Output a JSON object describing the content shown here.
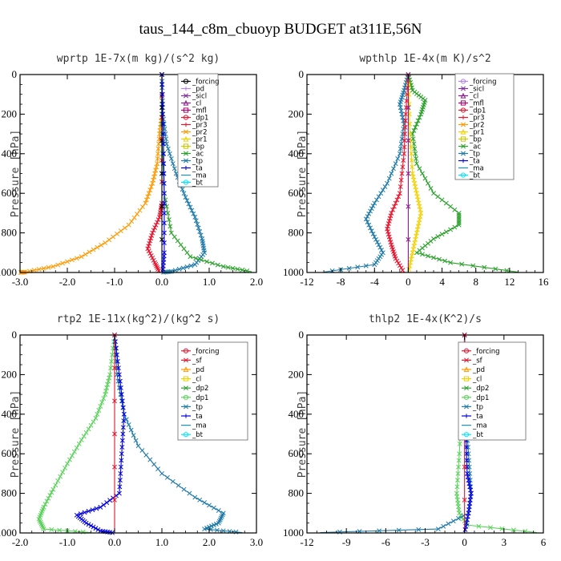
{
  "figure": {
    "title": "taus_144_c8m_cbuoyp  BUDGET at311E,56N"
  },
  "chart_data": [
    {
      "type": "line",
      "title": "wprtp  1E-7x(m kg)/(s^2 kg)",
      "ylabel": "Pressure [hPa]",
      "xlabel": "",
      "xlim": [
        -3.0,
        2.0
      ],
      "ylim": [
        1000,
        0
      ],
      "y_reversed": true,
      "xticks": [
        -3.0,
        -2.0,
        -1.0,
        0.0,
        1.0,
        2.0
      ],
      "xtick_labels": [
        "-3.0",
        "-2.0",
        "-1.0",
        "0.0",
        "1.0",
        "2.0"
      ],
      "yticks": [
        0,
        200,
        400,
        600,
        800,
        1000
      ],
      "ytick_labels": [
        "0",
        "200",
        "400",
        "600",
        "800",
        "1000"
      ],
      "legend_position": "top-right",
      "legend": [
        {
          "name": "_forcing",
          "color": "#000000",
          "marker": "o"
        },
        {
          "name": "_pd",
          "color": "#b284ec",
          "marker": "+"
        },
        {
          "name": "_sicl",
          "color": "#7d2e9e",
          "marker": "x"
        },
        {
          "name": "_cl",
          "color": "#8b1a8b",
          "marker": "^"
        },
        {
          "name": "_mfl",
          "color": "#b0006b",
          "marker": "s"
        },
        {
          "name": "_dp1",
          "color": "#e8152f",
          "marker": "o"
        },
        {
          "name": "_pr3",
          "color": "#e8152f",
          "marker": "+"
        },
        {
          "name": "_pr2",
          "color": "#ff9900",
          "marker": "x"
        },
        {
          "name": "_pr1",
          "color": "#f2d100",
          "marker": "^"
        },
        {
          "name": "_bp",
          "color": "#c8c800",
          "marker": "s"
        },
        {
          "name": "_ac",
          "color": "#2aa02a",
          "marker": "x"
        },
        {
          "name": "_tp",
          "color": "#1f7aa8",
          "marker": "x"
        },
        {
          "name": "_ta",
          "color": "#0000dd",
          "marker": "+"
        },
        {
          "name": "_ma",
          "color": "#1d8fc4",
          "marker": "-"
        },
        {
          "name": "_bt",
          "color": "#00e5ff",
          "marker": "o"
        }
      ],
      "series": [
        {
          "color": "#ff9900",
          "points": [
            [
              0.0,
              0
            ],
            [
              0.0,
              200
            ],
            [
              -0.05,
              300
            ],
            [
              -0.1,
              450
            ],
            [
              -0.2,
              550
            ],
            [
              -0.35,
              650
            ],
            [
              -0.7,
              760
            ],
            [
              -1.2,
              850
            ],
            [
              -1.7,
              920
            ],
            [
              -2.3,
              970
            ],
            [
              -2.9,
              998
            ],
            [
              -3.0,
              1000
            ]
          ]
        },
        {
          "color": "#1f7aa8",
          "points": [
            [
              0.0,
              0
            ],
            [
              0.02,
              200
            ],
            [
              0.1,
              350
            ],
            [
              0.3,
              500
            ],
            [
              0.5,
              620
            ],
            [
              0.7,
              720
            ],
            [
              0.85,
              830
            ],
            [
              0.9,
              900
            ],
            [
              0.7,
              960
            ],
            [
              0.2,
              995
            ],
            [
              0.0,
              1000
            ]
          ]
        },
        {
          "color": "#2aa02a",
          "points": [
            [
              0.0,
              0
            ],
            [
              0.0,
              300
            ],
            [
              0.05,
              600
            ],
            [
              0.2,
              800
            ],
            [
              0.6,
              920
            ],
            [
              1.3,
              970
            ],
            [
              1.9,
              996
            ]
          ]
        },
        {
          "color": "#e8152f",
          "points": [
            [
              0.0,
              0
            ],
            [
              0.0,
              650
            ],
            [
              -0.05,
              720
            ],
            [
              -0.2,
              800
            ],
            [
              -0.3,
              880
            ],
            [
              -0.15,
              950
            ],
            [
              -0.05,
              1000
            ]
          ]
        },
        {
          "color": "#000000",
          "points": [
            [
              0.0,
              0
            ],
            [
              0.0,
              1000
            ]
          ]
        },
        {
          "color": "#0000dd",
          "points": [
            [
              0.0,
              0
            ],
            [
              0.03,
              300
            ],
            [
              0.05,
              600
            ],
            [
              0.05,
              900
            ],
            [
              0.02,
              1000
            ]
          ]
        }
      ]
    },
    {
      "type": "line",
      "title": "wpthlp  1E-4x(m K)/s^2",
      "ylabel": "Pressure [hPa]",
      "xlabel": "",
      "xlim": [
        -12,
        16
      ],
      "ylim": [
        1000,
        0
      ],
      "y_reversed": true,
      "xticks": [
        -12,
        -8,
        -4,
        0,
        4,
        8,
        12,
        16
      ],
      "xtick_labels": [
        "-12",
        "-8",
        "-4",
        "0",
        "4",
        "8",
        "12",
        "16"
      ],
      "yticks": [
        0,
        200,
        400,
        600,
        800,
        1000
      ],
      "ytick_labels": [
        "0",
        "200",
        "400",
        "600",
        "800",
        "1000"
      ],
      "legend_position": "top-right",
      "legend": [
        {
          "name": "_forcing",
          "color": "#b284ec",
          "marker": "o"
        },
        {
          "name": "_sicl",
          "color": "#7d2e9e",
          "marker": "x"
        },
        {
          "name": "_cl",
          "color": "#8b1a8b",
          "marker": "^"
        },
        {
          "name": "_mfl",
          "color": "#b0006b",
          "marker": "s"
        },
        {
          "name": "_dp1",
          "color": "#e8152f",
          "marker": "o"
        },
        {
          "name": "_pr3",
          "color": "#e8152f",
          "marker": "+"
        },
        {
          "name": "_pr2",
          "color": "#ff9900",
          "marker": "x"
        },
        {
          "name": "_pr1",
          "color": "#f2d100",
          "marker": "^"
        },
        {
          "name": "_bp",
          "color": "#c8c800",
          "marker": "s"
        },
        {
          "name": "_ac",
          "color": "#2aa02a",
          "marker": "x"
        },
        {
          "name": "_tp",
          "color": "#1f7aa8",
          "marker": "x"
        },
        {
          "name": "_ta",
          "color": "#0000dd",
          "marker": "+"
        },
        {
          "name": "_ma",
          "color": "#1d8fc4",
          "marker": "-"
        },
        {
          "name": "_bt",
          "color": "#00e5ff",
          "marker": "o"
        }
      ],
      "series": [
        {
          "color": "#2aa02a",
          "points": [
            [
              0,
              0
            ],
            [
              0.5,
              80
            ],
            [
              2,
              130
            ],
            [
              1.5,
              200
            ],
            [
              0.5,
              300
            ],
            [
              1,
              450
            ],
            [
              3,
              600
            ],
            [
              6,
              700
            ],
            [
              6,
              760
            ],
            [
              3,
              830
            ],
            [
              1,
              900
            ],
            [
              5,
              950
            ],
            [
              13,
              998
            ]
          ]
        },
        {
          "color": "#1f7aa8",
          "points": [
            [
              0,
              0
            ],
            [
              -0.5,
              80
            ],
            [
              -1,
              150
            ],
            [
              -0.5,
              250
            ],
            [
              -1,
              400
            ],
            [
              -2.5,
              550
            ],
            [
              -4,
              650
            ],
            [
              -5,
              730
            ],
            [
              -4,
              820
            ],
            [
              -3,
              900
            ],
            [
              -4,
              960
            ],
            [
              -10,
              998
            ]
          ]
        },
        {
          "color": "#e8152f",
          "points": [
            [
              0,
              0
            ],
            [
              -0.3,
              200
            ],
            [
              -0.5,
              400
            ],
            [
              -1,
              600
            ],
            [
              -2,
              700
            ],
            [
              -2.5,
              780
            ],
            [
              -2,
              860
            ],
            [
              -1.5,
              930
            ],
            [
              -0.5,
              1000
            ]
          ]
        },
        {
          "color": "#f2d100",
          "points": [
            [
              0,
              0
            ],
            [
              0.2,
              300
            ],
            [
              0.5,
              500
            ],
            [
              1,
              600
            ],
            [
              1.5,
              700
            ],
            [
              1,
              800
            ],
            [
              0.5,
              900
            ],
            [
              0,
              1000
            ]
          ]
        },
        {
          "color": "#8b1a8b",
          "points": [
            [
              0,
              0
            ],
            [
              0,
              1000
            ]
          ]
        }
      ]
    },
    {
      "type": "line",
      "title": "rtp2  1E-11x(kg^2)/(kg^2 s)",
      "ylabel": "Pressure [hPa]",
      "xlabel": "",
      "xlim": [
        -2.0,
        3.0
      ],
      "ylim": [
        1000,
        0
      ],
      "y_reversed": true,
      "xticks": [
        -2.0,
        -1.0,
        0.0,
        1.0,
        2.0,
        3.0
      ],
      "xtick_labels": [
        "-2.0",
        "-1.0",
        "0.0",
        "1.0",
        "2.0",
        "3.0"
      ],
      "yticks": [
        0,
        200,
        400,
        600,
        800,
        1000
      ],
      "ytick_labels": [
        "0",
        "200",
        "400",
        "600",
        "800",
        "1000"
      ],
      "legend_position": "top-right",
      "legend": [
        {
          "name": "_forcing",
          "color": "#e8152f",
          "marker": "o"
        },
        {
          "name": "_sf",
          "color": "#e8152f",
          "marker": "x"
        },
        {
          "name": "_pd",
          "color": "#ff9900",
          "marker": "^"
        },
        {
          "name": "_cl",
          "color": "#f2d100",
          "marker": "s"
        },
        {
          "name": "_dp2",
          "color": "#2aa02a",
          "marker": "x"
        },
        {
          "name": "_dp1",
          "color": "#5ad25a",
          "marker": "o"
        },
        {
          "name": "_tp",
          "color": "#1f7aa8",
          "marker": "x"
        },
        {
          "name": "_ta",
          "color": "#0000dd",
          "marker": "+"
        },
        {
          "name": "_ma",
          "color": "#1d8fc4",
          "marker": "-"
        },
        {
          "name": "_bt",
          "color": "#00e5ff",
          "marker": "o"
        }
      ],
      "series": [
        {
          "color": "#5ad25a",
          "points": [
            [
              0,
              0
            ],
            [
              -0.1,
              200
            ],
            [
              -0.2,
              300
            ],
            [
              -0.4,
              420
            ],
            [
              -0.7,
              530
            ],
            [
              -1.0,
              650
            ],
            [
              -1.3,
              780
            ],
            [
              -1.5,
              870
            ],
            [
              -1.6,
              930
            ],
            [
              -1.5,
              980
            ],
            [
              -0.5,
              998
            ]
          ]
        },
        {
          "color": "#1f7aa8",
          "points": [
            [
              0,
              0
            ],
            [
              0.05,
              200
            ],
            [
              0.2,
              400
            ],
            [
              0.5,
              560
            ],
            [
              1.0,
              700
            ],
            [
              1.7,
              820
            ],
            [
              2.3,
              900
            ],
            [
              2.2,
              950
            ],
            [
              1.9,
              980
            ],
            [
              2.7,
              998
            ]
          ]
        },
        {
          "color": "#0000dd",
          "points": [
            [
              0,
              0
            ],
            [
              0.1,
              200
            ],
            [
              0.2,
              400
            ],
            [
              0.15,
              600
            ],
            [
              0.1,
              800
            ],
            [
              -0.3,
              870
            ],
            [
              -0.8,
              910
            ],
            [
              -0.6,
              950
            ],
            [
              -0.3,
              990
            ],
            [
              0,
              1000
            ]
          ]
        },
        {
          "color": "#e8152f",
          "points": [
            [
              0,
              0
            ],
            [
              0,
              1000
            ]
          ]
        }
      ]
    },
    {
      "type": "line",
      "title": "thlp2  1E-4x(K^2)/s",
      "ylabel": "Pressure [hPa]",
      "xlabel": "",
      "xlim": [
        -12,
        6
      ],
      "ylim": [
        1000,
        0
      ],
      "y_reversed": true,
      "xticks": [
        -12,
        -9,
        -6,
        -3,
        0,
        3,
        6
      ],
      "xtick_labels": [
        "-12",
        "-9",
        "-6",
        "-3",
        "0",
        "3",
        "6"
      ],
      "yticks": [
        0,
        200,
        400,
        600,
        800,
        1000
      ],
      "ytick_labels": [
        "0",
        "200",
        "400",
        "600",
        "800",
        "1000"
      ],
      "legend_position": "top-right",
      "legend": [
        {
          "name": "_forcing",
          "color": "#e8152f",
          "marker": "o"
        },
        {
          "name": "_sf",
          "color": "#e8152f",
          "marker": "x"
        },
        {
          "name": "_pd",
          "color": "#ff9900",
          "marker": "^"
        },
        {
          "name": "_cl",
          "color": "#f2d100",
          "marker": "s"
        },
        {
          "name": "_dp2",
          "color": "#2aa02a",
          "marker": "x"
        },
        {
          "name": "_dp1",
          "color": "#5ad25a",
          "marker": "o"
        },
        {
          "name": "_tp",
          "color": "#1f7aa8",
          "marker": "x"
        },
        {
          "name": "_ta",
          "color": "#0000dd",
          "marker": "+"
        },
        {
          "name": "_ma",
          "color": "#1d8fc4",
          "marker": "-"
        },
        {
          "name": "_bt",
          "color": "#00e5ff",
          "marker": "o"
        }
      ],
      "series": [
        {
          "color": "#5ad25a",
          "points": [
            [
              0,
              0
            ],
            [
              -0.2,
              300
            ],
            [
              -0.4,
              600
            ],
            [
              -0.6,
              800
            ],
            [
              -0.4,
              900
            ],
            [
              0.2,
              960
            ],
            [
              5.5,
              998
            ]
          ]
        },
        {
          "color": "#1f7aa8",
          "points": [
            [
              0,
              0
            ],
            [
              0.1,
              400
            ],
            [
              0.3,
              600
            ],
            [
              0.5,
              800
            ],
            [
              0.3,
              900
            ],
            [
              -2,
              980
            ],
            [
              -11,
              998
            ]
          ]
        },
        {
          "color": "#0000dd",
          "points": [
            [
              0,
              0
            ],
            [
              0.1,
              500
            ],
            [
              0.2,
              700
            ],
            [
              0.5,
              800
            ],
            [
              0.3,
              900
            ],
            [
              0,
              1000
            ]
          ]
        },
        {
          "color": "#e8152f",
          "points": [
            [
              0,
              0
            ],
            [
              0,
              1000
            ]
          ]
        }
      ]
    }
  ]
}
